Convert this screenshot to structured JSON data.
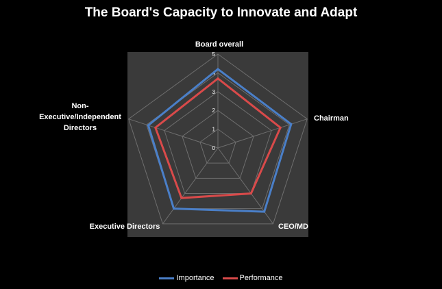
{
  "chart_data": {
    "type": "radar",
    "title": "The Board's Capacity to Innovate and Adapt",
    "categories": [
      "Board overall",
      "Chairman",
      "CEO/MD",
      "Executive Directors",
      "Non-\nExecutive/Independent\nDirectors"
    ],
    "rlim": [
      0,
      5
    ],
    "rticks": [
      "0",
      "1",
      "2",
      "3",
      "4",
      "5"
    ],
    "grid": true,
    "legend_position": "bottom",
    "series": [
      {
        "name": "Importance",
        "color": "#4a7fc8",
        "values": [
          4.2,
          4.1,
          4.2,
          4.0,
          3.9
        ]
      },
      {
        "name": "Performance",
        "color": "#d94a4a",
        "values": [
          3.7,
          3.5,
          3.0,
          3.3,
          3.5
        ]
      }
    ],
    "plot_background": "#3a3a3a",
    "grid_color": "#6e6e6e"
  }
}
